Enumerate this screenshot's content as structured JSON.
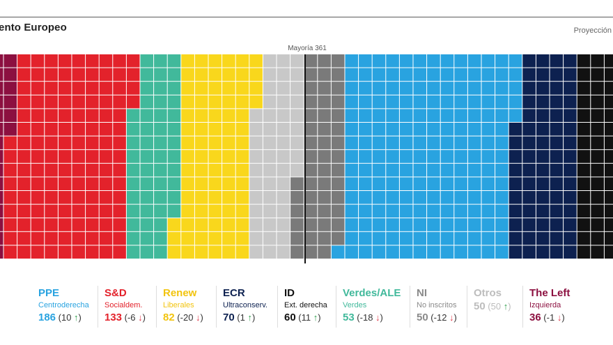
{
  "header": {
    "title": "ento Europeo",
    "subtitle": "Proyección"
  },
  "majority": {
    "label": "Mayoría 361",
    "value": 361
  },
  "chart_data": {
    "type": "waffle",
    "title": "ento Europeo",
    "total_seats": 720,
    "majority_threshold": 361,
    "rows": 15,
    "order": [
      "The Left",
      "S&D",
      "Verdes/ALE",
      "Renew",
      "Otros",
      "NI",
      "PPE",
      "ECR",
      "ID"
    ],
    "groups": [
      {
        "name": "PPE",
        "description": "Centroderecha",
        "seats": 186,
        "change": "10",
        "direction": "up",
        "color": "#29a3e0",
        "text_color": "#29a3e0"
      },
      {
        "name": "S&D",
        "description": "Socialdem.",
        "seats": 133,
        "change": "-6",
        "direction": "down",
        "color": "#e3222b",
        "text_color": "#e3222b"
      },
      {
        "name": "Renew",
        "description": "Liberales",
        "seats": 82,
        "change": "-20",
        "direction": "down",
        "color": "#f9d71c",
        "text_color": "#f2c40f"
      },
      {
        "name": "ECR",
        "description": "Ultraconserv.",
        "seats": 70,
        "change": "1",
        "direction": "up",
        "color": "#0d2150",
        "text_color": "#0d2150"
      },
      {
        "name": "ID",
        "description": "Ext. derecha",
        "seats": 60,
        "change": "11",
        "direction": "up",
        "color": "#111111",
        "text_color": "#111111"
      },
      {
        "name": "Verdes/ALE",
        "description": "Verdes",
        "seats": 53,
        "change": "-18",
        "direction": "down",
        "color": "#41b99b",
        "text_color": "#41b99b"
      },
      {
        "name": "NI",
        "description": "No inscritos",
        "seats": 50,
        "change": "-12",
        "direction": "down",
        "color": "#7a7a7a",
        "text_color": "#8a8a8a"
      },
      {
        "name": "Otros",
        "description": "",
        "seats": 50,
        "change": "50",
        "direction": "up",
        "color": "#c8c8c8",
        "text_color": "#bdbdbd"
      },
      {
        "name": "The Left",
        "description": "Izquierda",
        "seats": 36,
        "change": "-1",
        "direction": "down",
        "color": "#8c1040",
        "text_color": "#8c1040"
      }
    ]
  }
}
